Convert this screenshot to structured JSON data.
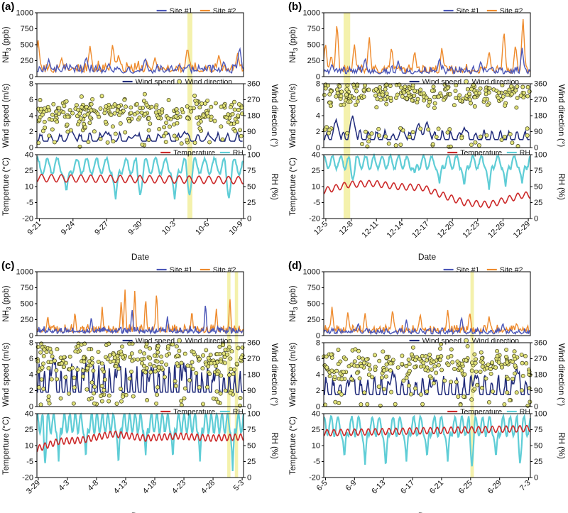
{
  "colors": {
    "site1": "#4a56b8",
    "site2": "#ee8a2c",
    "windspeed": "#1f2a7a",
    "winddir_fill": "#e2e37a",
    "temperature": "#cc2a2a",
    "rh": "#5fcdd6",
    "highlight": "#f2ee9e",
    "axis": "#000000"
  },
  "chart_data": [
    {
      "type": "line",
      "panel_label": "(a)",
      "xlabel": "Date",
      "x_ticks": [
        "9-21",
        "9-24",
        "9-27",
        "9-30",
        "10-3",
        "10-6",
        "10-9"
      ],
      "n_days": 21,
      "highlights": [
        [
          15.3,
          15.8
        ]
      ],
      "nh3": {
        "ylabel": "NH3 (ppb)",
        "ylim": [
          0,
          1000
        ],
        "yticks": [
          "0",
          "250",
          "500",
          "750",
          "1000"
        ],
        "legend": [
          "Site #1",
          "Site #2"
        ],
        "series": [
          {
            "name": "Site #1",
            "base": 70,
            "amp": 90,
            "peaks": [
              [
                1.2,
                270
              ],
              [
                5.0,
                320
              ],
              [
                7.3,
                210
              ],
              [
                11.0,
                300
              ],
              [
                15.2,
                150
              ],
              [
                19.0,
                250
              ],
              [
                20.6,
                480
              ]
            ]
          },
          {
            "name": "Site #2",
            "base": 80,
            "amp": 110,
            "peaks": [
              [
                0.1,
                600
              ],
              [
                2.5,
                300
              ],
              [
                5.4,
                480
              ],
              [
                7.7,
                520
              ],
              [
                8.3,
                350
              ],
              [
                12.0,
                300
              ],
              [
                15.3,
                480
              ],
              [
                18.5,
                350
              ],
              [
                20.4,
                370
              ]
            ]
          }
        ]
      },
      "wind": {
        "ylabel": "Wind speed (m/s)",
        "ylabel_right": "Wind direction (°)",
        "ylim": [
          0,
          8
        ],
        "yticks": [
          "0",
          "2",
          "4",
          "6",
          "8"
        ],
        "ylim_right": [
          0,
          360
        ],
        "yticks_right": [
          "0",
          "90",
          "180",
          "270",
          "360"
        ],
        "legend": [
          "Wind speed",
          "Wind direction"
        ],
        "speed": {
          "base": 0.8,
          "amp": 0.8,
          "peaks": [
            [
              3.5,
              2.2
            ],
            [
              7.0,
              2.0
            ],
            [
              10.0,
              1.6
            ],
            [
              13.0,
              1.8
            ],
            [
              15.0,
              2.0
            ],
            [
              17.5,
              1.5
            ]
          ]
        },
        "direction": {
          "center": 200,
          "spread": 60,
          "points_per_day": 24
        }
      },
      "met": {
        "ylabel": "Temperture (°C)",
        "ylabel_right": "RH (%)",
        "ylim": [
          -20,
          40
        ],
        "yticks": [
          "-20",
          "-5",
          "10",
          "25",
          "40"
        ],
        "ylim_right": [
          0,
          100
        ],
        "yticks_right": [
          "0",
          "25",
          "50",
          "75",
          "100"
        ],
        "legend": [
          "Temperature",
          "RH"
        ],
        "temperature": {
          "start": 18,
          "end": 16,
          "amp": 3.5
        },
        "rh": {
          "base": 82,
          "amp": 12,
          "dips": [
            [
              3.0,
              40
            ],
            [
              8.0,
              30
            ],
            [
              10.5,
              35
            ],
            [
              14.0,
              30
            ],
            [
              15.5,
              35
            ],
            [
              19.5,
              30
            ]
          ]
        }
      }
    },
    {
      "type": "line",
      "panel_label": "(b)",
      "xlabel": "Date",
      "x_ticks": [
        "12-5",
        "12-8",
        "12-11",
        "12-14",
        "12-17",
        "12-20",
        "12-23",
        "12-26",
        "12-29"
      ],
      "n_days": 25,
      "highlights": [
        [
          2.4,
          3.2
        ]
      ],
      "nh3": {
        "ylabel": "NH3 (ppb)",
        "ylim": [
          0,
          1000
        ],
        "yticks": [
          "0",
          "250",
          "500",
          "750",
          "1000"
        ],
        "legend": [
          "Site #1",
          "Site #2"
        ],
        "series": [
          {
            "name": "Site #1",
            "base": 60,
            "amp": 70,
            "peaks": [
              [
                1.0,
                200
              ],
              [
                5.0,
                300
              ],
              [
                9.0,
                250
              ],
              [
                14.0,
                300
              ],
              [
                19.0,
                250
              ],
              [
                24.0,
                450
              ]
            ]
          },
          {
            "name": "Site #2",
            "base": 70,
            "amp": 90,
            "peaks": [
              [
                0.2,
                550
              ],
              [
                0.9,
                350
              ],
              [
                1.6,
                880
              ],
              [
                3.7,
                530
              ],
              [
                5.5,
                650
              ],
              [
                8.2,
                480
              ],
              [
                11.0,
                420
              ],
              [
                14.3,
                470
              ],
              [
                20.0,
                420
              ],
              [
                21.8,
                750
              ],
              [
                23.2,
                520
              ],
              [
                24.1,
                950
              ]
            ]
          }
        ]
      },
      "wind": {
        "ylabel": "Wind speed (m/s)",
        "ylabel_right": "Wind direction (°)",
        "ylim": [
          0,
          8
        ],
        "yticks": [
          "0",
          "2",
          "4",
          "6",
          "8"
        ],
        "ylim_right": [
          0,
          360
        ],
        "yticks_right": [
          "0",
          "90",
          "180",
          "270",
          "360"
        ],
        "legend": [
          "Wind speed",
          "Wind direction"
        ],
        "speed": {
          "base": 1.0,
          "amp": 0.9,
          "peaks": [
            [
              1.5,
              3.5
            ],
            [
              3.5,
              4.0
            ],
            [
              9.5,
              2.5
            ],
            [
              11.5,
              3.0
            ],
            [
              12.5,
              3.2
            ],
            [
              17.0,
              2.5
            ]
          ]
        },
        "direction": {
          "center": 300,
          "spread": 50,
          "points_per_day": 20
        }
      },
      "met": {
        "ylabel": "Temperture (°C)",
        "ylabel_right": "RH (%)",
        "ylim": [
          -20,
          40
        ],
        "yticks": [
          "-20",
          "-5",
          "10",
          "25",
          "40"
        ],
        "ylim_right": [
          0,
          100
        ],
        "yticks_right": [
          "0",
          "25",
          "50",
          "75",
          "100"
        ],
        "legend": [
          "Temperature",
          "RH"
        ],
        "temperature": {
          "start": 8,
          "end": 2,
          "amp": 3,
          "profile": [
            [
              0,
              6
            ],
            [
              3,
              12
            ],
            [
              6,
              13
            ],
            [
              9,
              10
            ],
            [
              12,
              9
            ],
            [
              14,
              3
            ],
            [
              17,
              -5
            ],
            [
              20,
              -7
            ],
            [
              24,
              2
            ]
          ]
        },
        "rh": {
          "base": 88,
          "amp": 10,
          "dips": [
            [
              3.5,
              60
            ],
            [
              11.0,
              70
            ],
            [
              14.0,
              55
            ],
            [
              17.0,
              50
            ],
            [
              20.0,
              45
            ],
            [
              22.0,
              50
            ],
            [
              24.0,
              55
            ]
          ]
        }
      }
    },
    {
      "type": "line",
      "panel_label": "(c)",
      "xlabel": "Date",
      "x_ticks": [
        "3-29",
        "4-3",
        "4-8",
        "4-13",
        "4-18",
        "4-23",
        "4-28",
        "5-3"
      ],
      "n_days": 38,
      "highlights": [
        [
          35.0,
          35.6
        ],
        [
          36.4,
          37.0
        ]
      ],
      "nh3": {
        "ylabel": "NH3 (ppb)",
        "ylim": [
          0,
          1000
        ],
        "yticks": [
          "0",
          "250",
          "500",
          "750",
          "1000"
        ],
        "legend": [
          "Site #1",
          "Site #2"
        ],
        "series": [
          {
            "name": "Site #1",
            "base": 50,
            "amp": 60,
            "peaks": [
              [
                10.0,
                300
              ],
              [
                17.5,
                420
              ],
              [
                24.0,
                300
              ],
              [
                31.0,
                520
              ]
            ]
          },
          {
            "name": "Site #2",
            "base": 60,
            "amp": 80,
            "peaks": [
              [
                2.0,
                320
              ],
              [
                7.0,
                380
              ],
              [
                12.0,
                450
              ],
              [
                15.5,
                550
              ],
              [
                16.2,
                720
              ],
              [
                18.0,
                700
              ],
              [
                20.0,
                600
              ],
              [
                22.0,
                700
              ],
              [
                28.5,
                400
              ],
              [
                33.0,
                420
              ],
              [
                35.5,
                600
              ]
            ]
          }
        ]
      },
      "wind": {
        "ylabel": "Wind speed (m/s)",
        "ylabel_right": "Wind direction (°)",
        "ylim": [
          0,
          8
        ],
        "yticks": [
          "0",
          "2",
          "4",
          "6",
          "8"
        ],
        "ylim_right": [
          0,
          360
        ],
        "yticks_right": [
          "0",
          "90",
          "180",
          "270",
          "360"
        ],
        "legend": [
          "Wind speed",
          "Wind direction"
        ],
        "speed": {
          "base": 1.8,
          "amp": 2.6,
          "peaks": [
            [
              3.0,
              6.5
            ],
            [
              9.0,
              5.5
            ],
            [
              15.0,
              6.0
            ],
            [
              21.0,
              5.0
            ],
            [
              27.0,
              5.5
            ],
            [
              33.0,
              5.0
            ]
          ]
        },
        "direction": {
          "center": 260,
          "spread": 80,
          "points_per_day": 14
        }
      },
      "met": {
        "ylabel": "Temperture (°C)",
        "ylabel_right": "RH (%)",
        "ylim": [
          -20,
          40
        ],
        "yticks": [
          "-20",
          "-5",
          "10",
          "25",
          "40"
        ],
        "ylim_right": [
          0,
          100
        ],
        "yticks_right": [
          "0",
          "25",
          "50",
          "75",
          "100"
        ],
        "legend": [
          "Temperature",
          "RH"
        ],
        "temperature": {
          "start": 10,
          "end": 16,
          "amp": 3,
          "profile": [
            [
              0,
              7
            ],
            [
              4,
              14
            ],
            [
              8,
              15
            ],
            [
              14,
              21
            ],
            [
              20,
              17
            ],
            [
              26,
              19
            ],
            [
              32,
              17
            ],
            [
              37,
              18
            ]
          ]
        },
        "rh": {
          "base": 85,
          "amp": 15,
          "dips": [
            [
              1.5,
              20
            ],
            [
              4.0,
              25
            ],
            [
              9.0,
              30
            ],
            [
              15.0,
              20
            ],
            [
              20.0,
              35
            ],
            [
              25.0,
              30
            ],
            [
              30.0,
              25
            ],
            [
              36.0,
              10
            ]
          ]
        }
      }
    },
    {
      "type": "line",
      "panel_label": "(d)",
      "xlabel": "Date",
      "x_ticks": [
        "6-5",
        "6-9",
        "6-13",
        "6-17",
        "6-21",
        "6-25",
        "6-29",
        "7-3"
      ],
      "n_days": 30,
      "highlights": [
        [
          21.3,
          21.8
        ]
      ],
      "nh3": {
        "ylabel": "NH3 (ppb)",
        "ylim": [
          0,
          1000
        ],
        "yticks": [
          "0",
          "250",
          "500",
          "750",
          "1000"
        ],
        "legend": [
          "Site #1",
          "Site #2"
        ],
        "series": [
          {
            "name": "Site #1",
            "base": 40,
            "amp": 50,
            "peaks": [
              [
                5.0,
                200
              ],
              [
                12.0,
                250
              ],
              [
                20.0,
                300
              ],
              [
                26.0,
                200
              ]
            ]
          },
          {
            "name": "Site #2",
            "base": 60,
            "amp": 80,
            "peaks": [
              [
                1.2,
                450
              ],
              [
                3.5,
                380
              ],
              [
                6.0,
                350
              ],
              [
                10.0,
                420
              ],
              [
                14.0,
                350
              ],
              [
                18.0,
                400
              ],
              [
                21.2,
                380
              ],
              [
                24.0,
                300
              ],
              [
                28.0,
                200
              ]
            ]
          }
        ]
      },
      "wind": {
        "ylabel": "Wind speed (m/s)",
        "ylabel_right": "Wind direction (°)",
        "ylim": [
          0,
          8
        ],
        "yticks": [
          "0",
          "2",
          "4",
          "6",
          "8"
        ],
        "ylim_right": [
          0,
          360
        ],
        "yticks_right": [
          "0",
          "90",
          "180",
          "270",
          "360"
        ],
        "legend": [
          "Wind speed",
          "Wind direction"
        ],
        "speed": {
          "base": 1.5,
          "amp": 1.8,
          "peaks": [
            [
              4.0,
              4.0
            ],
            [
              10.0,
              4.5
            ],
            [
              16.0,
              3.5
            ],
            [
              22.0,
              4.0
            ],
            [
              28.0,
              5.0
            ]
          ]
        },
        "direction": {
          "center": 240,
          "spread": 70,
          "points_per_day": 16
        }
      },
      "met": {
        "ylabel": "Temperture (°C)",
        "ylabel_right": "RH (%)",
        "ylim": [
          -20,
          40
        ],
        "yticks": [
          "-20",
          "-5",
          "10",
          "25",
          "40"
        ],
        "ylim_right": [
          0,
          100
        ],
        "yticks_right": [
          "0",
          "25",
          "50",
          "75",
          "100"
        ],
        "legend": [
          "Temperature",
          "RH"
        ],
        "temperature": {
          "start": 22,
          "end": 26,
          "amp": 3
        },
        "rh": {
          "base": 80,
          "amp": 15,
          "dips": [
            [
              3.0,
              30
            ],
            [
              6.0,
              20
            ],
            [
              9.0,
              15
            ],
            [
              12.0,
              25
            ],
            [
              15.0,
              30
            ],
            [
              18.0,
              25
            ],
            [
              21.5,
              15
            ],
            [
              25.0,
              30
            ],
            [
              28.5,
              20
            ]
          ]
        }
      }
    }
  ]
}
